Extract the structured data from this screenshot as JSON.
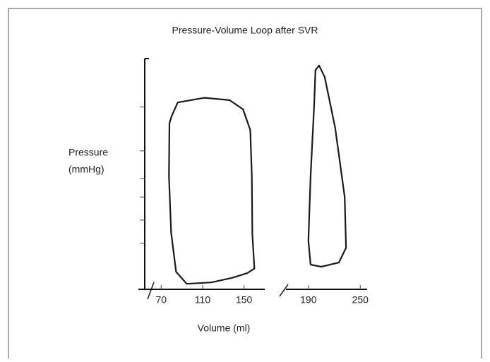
{
  "chart_data": [
    {
      "type": "line",
      "title": "Pressure-Volume Loop after SVR",
      "ylabel": [
        "Pressure",
        "(mmHg)"
      ],
      "xlabel": "Volume (ml)",
      "xlim": [
        48,
        170
      ],
      "xticks": [
        70,
        110,
        150
      ],
      "ylim": [
        0,
        100
      ],
      "yticks": [
        20,
        30,
        40,
        48,
        60,
        79
      ],
      "color": "#1a1a1a",
      "x": [
        80,
        86,
        112,
        136,
        149,
        156,
        157.5,
        158,
        160,
        153,
        139,
        118.5,
        94.6,
        84.4,
        79.6,
        77.5,
        78
      ],
      "values": [
        75,
        81,
        83,
        82,
        78,
        69,
        49,
        24,
        9,
        7,
        5,
        3,
        2.4,
        7.6,
        24.5,
        49,
        72
      ]
    },
    {
      "type": "line",
      "xlim": [
        164,
        258
      ],
      "xticks": [
        190,
        250
      ],
      "ylim": [
        0,
        100
      ],
      "color": "#1a1a1a",
      "x": [
        202.3,
        208.9,
        221,
        232,
        233.6,
        225.3,
        204.8,
        192.5,
        190,
        192.5,
        196.6,
        198.2
      ],
      "values": [
        97,
        92,
        70,
        40,
        18,
        11.6,
        9.8,
        10.7,
        21,
        49,
        79.5,
        95
      ]
    }
  ]
}
